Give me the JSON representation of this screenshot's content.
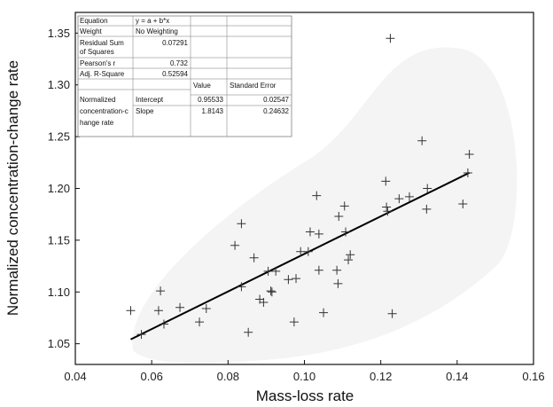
{
  "chart_data": {
    "type": "scatter",
    "xlabel": "Mass-loss rate",
    "ylabel": "Normalized concentration-change rate",
    "xlim": [
      0.04,
      0.16
    ],
    "ylim": [
      1.03,
      1.37
    ],
    "xticks": [
      "0.04",
      "0.06",
      "0.08",
      "0.10",
      "0.12",
      "0.14",
      "0.16"
    ],
    "yticks": [
      "1.05",
      "1.10",
      "1.15",
      "1.20",
      "1.25",
      "1.30",
      "1.35"
    ],
    "xtick_values": [
      0.04,
      0.06,
      0.08,
      0.1,
      0.12,
      0.14,
      0.16
    ],
    "ytick_values": [
      1.05,
      1.1,
      1.15,
      1.2,
      1.25,
      1.3,
      1.35
    ],
    "marker": "+",
    "grid": false,
    "points": [
      [
        0.0545,
        1.082
      ],
      [
        0.0573,
        1.059
      ],
      [
        0.0618,
        1.082
      ],
      [
        0.0623,
        1.101
      ],
      [
        0.0632,
        1.069
      ],
      [
        0.0674,
        1.085
      ],
      [
        0.0725,
        1.071
      ],
      [
        0.0743,
        1.084
      ],
      [
        0.0818,
        1.145
      ],
      [
        0.0835,
        1.166
      ],
      [
        0.0835,
        1.105
      ],
      [
        0.0853,
        1.061
      ],
      [
        0.0868,
        1.133
      ],
      [
        0.0883,
        1.093
      ],
      [
        0.0893,
        1.09
      ],
      [
        0.0905,
        1.12
      ],
      [
        0.0912,
        1.101
      ],
      [
        0.0915,
        1.1
      ],
      [
        0.0925,
        1.12
      ],
      [
        0.0958,
        1.112
      ],
      [
        0.0973,
        1.071
      ],
      [
        0.0978,
        1.113
      ],
      [
        0.099,
        1.139
      ],
      [
        0.101,
        1.139
      ],
      [
        0.1015,
        1.158
      ],
      [
        0.1032,
        1.193
      ],
      [
        0.1038,
        1.156
      ],
      [
        0.1038,
        1.121
      ],
      [
        0.105,
        1.08
      ],
      [
        0.1085,
        1.121
      ],
      [
        0.1088,
        1.108
      ],
      [
        0.109,
        1.173
      ],
      [
        0.1105,
        1.183
      ],
      [
        0.1108,
        1.158
      ],
      [
        0.1115,
        1.131
      ],
      [
        0.112,
        1.136
      ],
      [
        0.1213,
        1.207
      ],
      [
        0.1215,
        1.182
      ],
      [
        0.1218,
        1.178
      ],
      [
        0.1225,
        1.345
      ],
      [
        0.123,
        1.079
      ],
      [
        0.1248,
        1.19
      ],
      [
        0.1275,
        1.192
      ],
      [
        0.1308,
        1.246
      ],
      [
        0.132,
        1.18
      ],
      [
        0.1322,
        1.2
      ],
      [
        0.1415,
        1.185
      ],
      [
        0.1428,
        1.215
      ],
      [
        0.1432,
        1.233
      ]
    ],
    "fit": {
      "x_start": 0.0545,
      "x_end": 0.1432,
      "intercept": 0.95533,
      "slope": 1.8143
    },
    "stats_table": {
      "equation_label": "Equation",
      "equation_value": "y = a + b*x",
      "weight_label": "Weight",
      "weight_value": "No Weighting",
      "rss_label_line1": "Residual Sum",
      "rss_label_line2": "of Squares",
      "rss_value": "0.07291",
      "pearson_label": "Pearson's r",
      "pearson_value": "0.732",
      "adj_r2_label": "Adj. R-Square",
      "adj_r2_value": "0.52594",
      "value_header": "Value",
      "se_header": "Standard Error",
      "series_label_line1": "Normalized",
      "series_label_line2": "concentration-c",
      "series_label_line3": "hange rate",
      "intercept_label": "Intercept",
      "intercept_value": "0.95533",
      "intercept_se": "0.02547",
      "slope_label": "Slope",
      "slope_value": "1.8143",
      "slope_se": "0.24632"
    }
  }
}
